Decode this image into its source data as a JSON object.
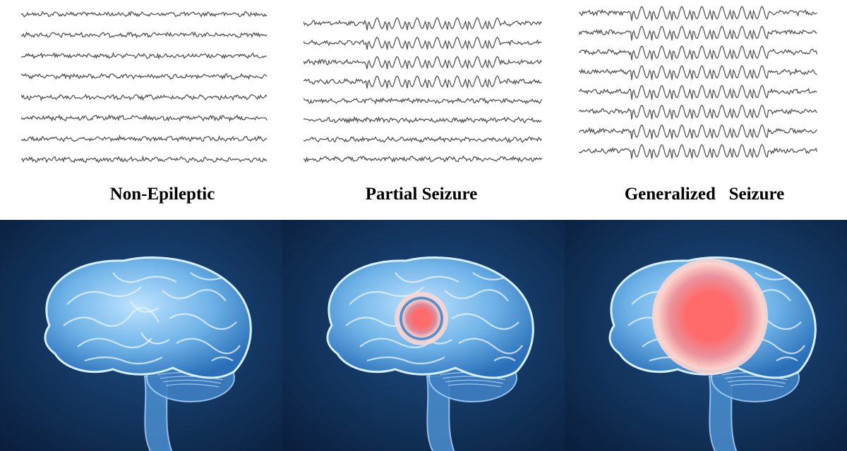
{
  "panels": [
    {
      "label": "Non-Epileptic",
      "type": "normal",
      "focus": "none"
    },
    {
      "label": "Partial Seizure",
      "type": "partial",
      "focus": "small"
    },
    {
      "label": "Generalized   Seizure",
      "type": "generalized",
      "focus": "large"
    }
  ],
  "colors": {
    "trace": "#555555",
    "background_top": "#ffffff",
    "panel_bg_center": "#1d4f86",
    "panel_bg_edge": "#0a1f3d",
    "brain_fill": "#6fb3e8",
    "brain_edge": "#2a6fb8",
    "focus_core": "#ff6b6b",
    "focus_ring": "#ffd6d0"
  }
}
